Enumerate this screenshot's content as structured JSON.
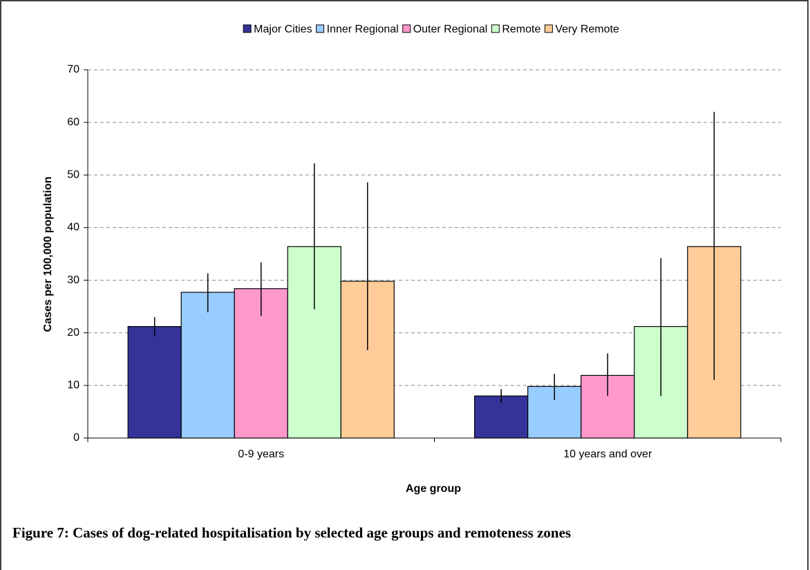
{
  "chart_data": {
    "type": "bar",
    "caption": "Figure 7: Cases of dog-related hospitalisation by selected age groups and remoteness zones",
    "x_label": "Age group",
    "y_label": "Cases per 100,000 population",
    "categories": [
      "0-9 years",
      "10 years and over"
    ],
    "series": [
      {
        "name": "Major Cities",
        "color": "#333399",
        "values": [
          21.2,
          8.0
        ],
        "lower": [
          19.3,
          6.7
        ],
        "upper": [
          23.0,
          9.3
        ]
      },
      {
        "name": "Inner Regional",
        "color": "#99ccff",
        "values": [
          27.7,
          9.8
        ],
        "lower": [
          23.9,
          7.2
        ],
        "upper": [
          31.3,
          12.2
        ]
      },
      {
        "name": "Outer Regional",
        "color": "#ff99cc",
        "values": [
          28.4,
          11.9
        ],
        "lower": [
          23.2,
          8.0
        ],
        "upper": [
          33.4,
          16.1
        ]
      },
      {
        "name": "Remote",
        "color": "#ccffcc",
        "values": [
          36.4,
          21.2
        ],
        "lower": [
          24.5,
          8.0
        ],
        "upper": [
          52.2,
          34.2
        ]
      },
      {
        "name": "Very Remote",
        "color": "#ffcc99",
        "values": [
          29.8,
          36.4
        ],
        "lower": [
          16.7,
          11.0
        ],
        "upper": [
          48.6,
          62.0
        ]
      }
    ],
    "ylim": [
      0,
      70
    ],
    "yticks": [
      0,
      10,
      20,
      30,
      40,
      50,
      60,
      70
    ],
    "grid": true,
    "legend": "top"
  }
}
